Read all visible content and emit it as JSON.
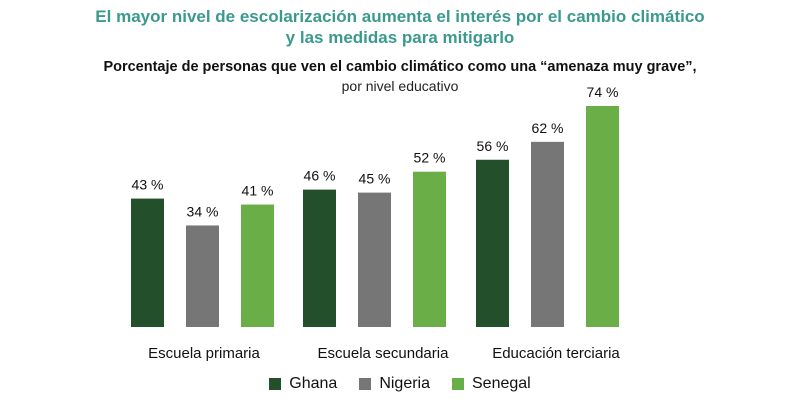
{
  "title_line1": "El mayor nivel de escolarización aumenta el interés por el cambio climático",
  "title_line2": "y las medidas para mitigarlo",
  "subtitle": "Porcentaje de personas que ven el cambio climático como una “amenaza muy grave”,",
  "subtitle2": "por nivel educativo",
  "chart_data": {
    "type": "bar",
    "title": "Porcentaje de personas que ven el cambio climático como una “amenaza muy grave”,",
    "subtitle": "por nivel educativo",
    "categories": [
      "Escuela primaria",
      "Escuela secundaria",
      "Educación terciaria"
    ],
    "series": [
      {
        "name": "Ghana",
        "color": "#234f2a",
        "values": [
          43,
          46,
          56
        ],
        "labels": [
          "43 %",
          "46 %",
          "56 %"
        ]
      },
      {
        "name": "Nigeria",
        "color": "#767676",
        "values": [
          34,
          45,
          62
        ],
        "labels": [
          "34 %",
          "45 %",
          "62 %"
        ]
      },
      {
        "name": "Senegal",
        "color": "#6aae48",
        "values": [
          41,
          52,
          74
        ],
        "labels": [
          "41 %",
          "52 %",
          "74 %"
        ]
      }
    ],
    "ylim": [
      0,
      74
    ],
    "grid": false,
    "legend_position": "bottom"
  }
}
